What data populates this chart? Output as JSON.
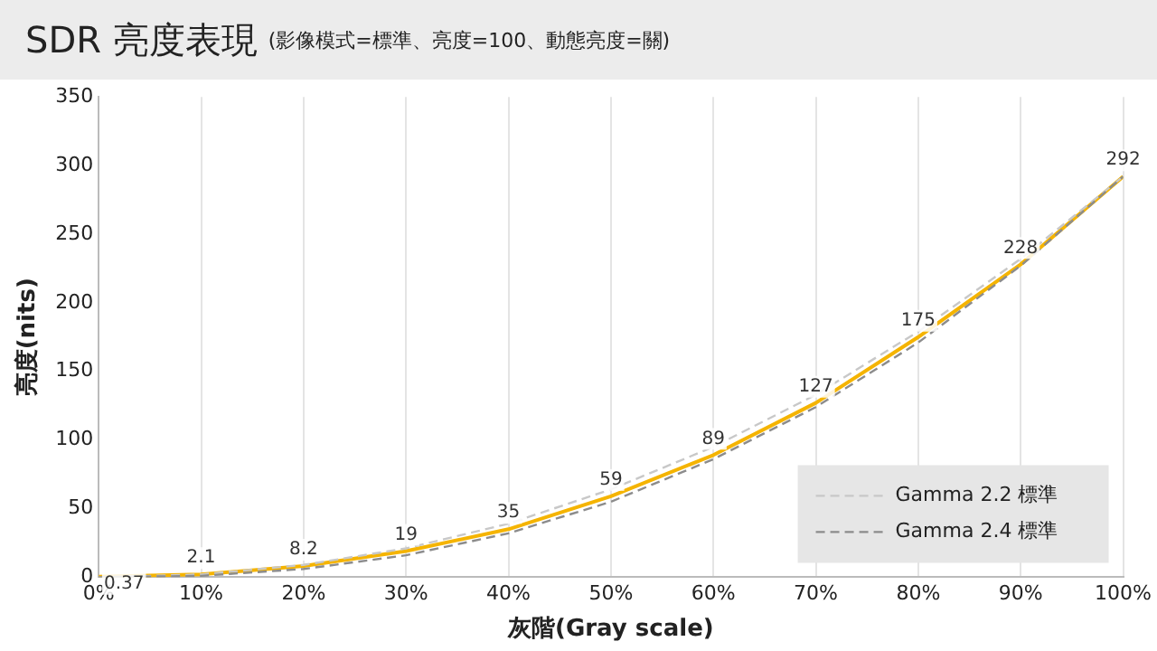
{
  "chart_data": {
    "type": "line",
    "title": "SDR 亮度表現",
    "subtitle": "(影像模式=標準、亮度=100、動態亮度=關)",
    "xlabel": "灰階(Gray scale)",
    "ylabel": "亮度(nits)",
    "x": [
      0,
      10,
      20,
      30,
      40,
      50,
      60,
      70,
      80,
      90,
      100
    ],
    "series": [
      {
        "color": "#f5b400",
        "values": [
          0.37,
          2.1,
          8.2,
          19,
          35,
          59,
          89,
          127,
          175,
          228,
          292
        ],
        "value_labels": [
          "0.37",
          "2.1",
          "8.2",
          "19",
          "35",
          "59",
          "89",
          "127",
          "175",
          "228",
          "292"
        ],
        "line_style": "solid"
      },
      {
        "name": "Gamma 2.2 標準",
        "color": "#c8c8c8",
        "values": [
          0,
          2,
          9,
          21,
          39,
          64,
          95,
          133,
          179,
          232,
          292
        ],
        "line_style": "dashed"
      },
      {
        "name": "Gamma 2.4 標準",
        "color": "#8c8c8c",
        "values": [
          0,
          1,
          6,
          16,
          32,
          55,
          86,
          124,
          171,
          227,
          292
        ],
        "line_style": "dashed"
      }
    ],
    "xlim": [
      0,
      100
    ],
    "xticks": [
      {
        "value": 0,
        "label": "0%"
      },
      {
        "value": 10,
        "label": "10%"
      },
      {
        "value": 20,
        "label": "20%"
      },
      {
        "value": 30,
        "label": "30%"
      },
      {
        "value": 40,
        "label": "40%"
      },
      {
        "value": 50,
        "label": "50%"
      },
      {
        "value": 60,
        "label": "60%"
      },
      {
        "value": 70,
        "label": "70%"
      },
      {
        "value": 80,
        "label": "80%"
      },
      {
        "value": 90,
        "label": "90%"
      },
      {
        "value": 100,
        "label": "100%"
      }
    ],
    "ylim": [
      0,
      350
    ],
    "yticks": [
      0,
      50,
      100,
      150,
      200,
      250,
      300,
      350
    ],
    "grid": "x",
    "legend": "bottom right",
    "marker": "none"
  }
}
